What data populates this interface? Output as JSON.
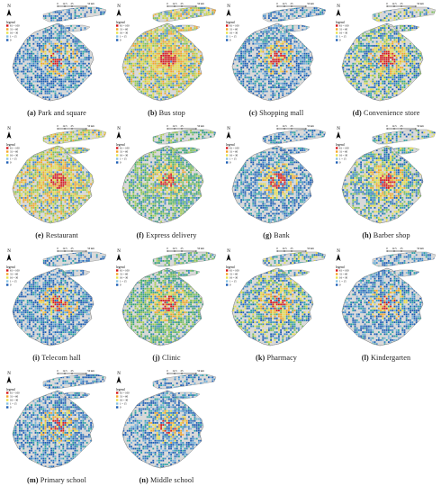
{
  "map_common": {
    "north_label": "N",
    "scale_labels": [
      "0",
      "12.5",
      "25",
      "50 km"
    ],
    "legend_title": "legend",
    "legend_items": [
      "61 ~ 100",
      "31 ~ 60",
      "16 ~ 30",
      "1 ~ 15",
      "0"
    ],
    "legend_colors": [
      "#d7191c",
      "#f4a52a",
      "#e8e04a",
      "#88c1e3",
      "#1f5fb6"
    ],
    "base_fill": "#d9d9d9"
  },
  "panels": [
    {
      "letter": "(a)",
      "title": "Park and square",
      "intensity": 0.45,
      "hot": 0.6,
      "hue": "blue"
    },
    {
      "letter": "(b)",
      "title": "Bus stop",
      "intensity": 0.85,
      "hot": 1.0,
      "hue": "warm"
    },
    {
      "letter": "(c)",
      "title": "Shopping mall",
      "intensity": 0.45,
      "hot": 0.7,
      "hue": "blue"
    },
    {
      "letter": "(d)",
      "title": "Convenience store",
      "intensity": 0.55,
      "hot": 0.8,
      "hue": "mixed"
    },
    {
      "letter": "(e)",
      "title": "Restaurant",
      "intensity": 0.7,
      "hot": 0.9,
      "hue": "warm"
    },
    {
      "letter": "(f)",
      "title": "Express delivery",
      "intensity": 0.6,
      "hot": 0.6,
      "hue": "green"
    },
    {
      "letter": "(g)",
      "title": "Bank",
      "intensity": 0.5,
      "hot": 0.8,
      "hue": "blue"
    },
    {
      "letter": "(h)",
      "title": "Barber shop",
      "intensity": 0.6,
      "hot": 0.9,
      "hue": "mixed"
    },
    {
      "letter": "(i)",
      "title": "Telecom hall",
      "intensity": 0.5,
      "hot": 0.6,
      "hue": "blue"
    },
    {
      "letter": "(j)",
      "title": "Clinic",
      "intensity": 0.65,
      "hot": 0.7,
      "hue": "green"
    },
    {
      "letter": "(k)",
      "title": "Pharmacy",
      "intensity": 0.55,
      "hot": 0.6,
      "hue": "mixed"
    },
    {
      "letter": "(l)",
      "title": "Kindergarten",
      "intensity": 0.45,
      "hot": 0.5,
      "hue": "blue"
    },
    {
      "letter": "(m)",
      "title": "Primary school",
      "intensity": 0.5,
      "hot": 0.6,
      "hue": "blue"
    },
    {
      "letter": "(n)",
      "title": "Middle school",
      "intensity": 0.45,
      "hot": 0.5,
      "hue": "blue"
    }
  ]
}
